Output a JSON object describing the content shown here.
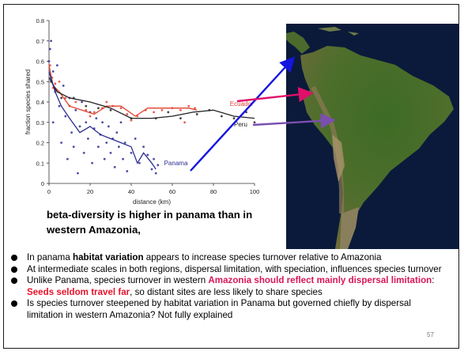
{
  "chart_data": {
    "type": "scatter",
    "xlabel": "distance (km)",
    "ylabel": "fraction species shared",
    "xlim": [
      0,
      100
    ],
    "ylim": [
      0,
      0.8
    ],
    "xticks": [
      "0",
      "20",
      "40",
      "60",
      "80",
      "100"
    ],
    "yticks": [
      "0",
      "0.1",
      "0.2",
      "0.3",
      "0.4",
      "0.5",
      "0.6",
      "0.7",
      "0.8"
    ],
    "grid": false,
    "series": [
      {
        "name": "Ecuador",
        "color": "#e2412f",
        "points": [
          [
            0.5,
            0.58
          ],
          [
            1.5,
            0.52
          ],
          [
            2,
            0.47
          ],
          [
            3,
            0.49
          ],
          [
            5,
            0.5
          ],
          [
            8,
            0.42
          ],
          [
            10,
            0.38
          ],
          [
            13,
            0.4
          ],
          [
            18,
            0.36
          ],
          [
            20,
            0.33
          ],
          [
            22,
            0.35
          ],
          [
            26,
            0.37
          ],
          [
            28,
            0.4
          ],
          [
            31,
            0.38
          ],
          [
            35,
            0.37
          ],
          [
            38,
            0.34
          ],
          [
            40,
            0.31
          ],
          [
            43,
            0.33
          ],
          [
            47,
            0.36
          ],
          [
            51,
            0.35
          ],
          [
            55,
            0.36
          ],
          [
            60,
            0.37
          ],
          [
            64,
            0.36
          ],
          [
            66,
            0.3
          ],
          [
            68,
            0.38
          ],
          [
            71,
            0.37
          ]
        ],
        "trend": [
          [
            0,
            0.58
          ],
          [
            2,
            0.48
          ],
          [
            5,
            0.45
          ],
          [
            10,
            0.38
          ],
          [
            16,
            0.36
          ],
          [
            22,
            0.34
          ],
          [
            28,
            0.38
          ],
          [
            35,
            0.38
          ],
          [
            42,
            0.33
          ],
          [
            48,
            0.37
          ],
          [
            55,
            0.37
          ],
          [
            62,
            0.37
          ],
          [
            68,
            0.37
          ],
          [
            72,
            0.36
          ]
        ]
      },
      {
        "name": "Peru",
        "color": "#222222",
        "points": [
          [
            1,
            0.5
          ],
          [
            3,
            0.46
          ],
          [
            6,
            0.42
          ],
          [
            12,
            0.42
          ],
          [
            18,
            0.38
          ],
          [
            24,
            0.37
          ],
          [
            30,
            0.36
          ],
          [
            40,
            0.32
          ],
          [
            52,
            0.32
          ],
          [
            58,
            0.35
          ],
          [
            64,
            0.32
          ],
          [
            72,
            0.34
          ],
          [
            78,
            0.36
          ],
          [
            84,
            0.33
          ],
          [
            90,
            0.32
          ],
          [
            96,
            0.35
          ],
          [
            100,
            0.3
          ]
        ],
        "trend": [
          [
            0,
            0.52
          ],
          [
            4,
            0.45
          ],
          [
            10,
            0.42
          ],
          [
            20,
            0.4
          ],
          [
            30,
            0.37
          ],
          [
            40,
            0.32
          ],
          [
            50,
            0.32
          ],
          [
            60,
            0.33
          ],
          [
            70,
            0.35
          ],
          [
            80,
            0.36
          ],
          [
            90,
            0.33
          ],
          [
            100,
            0.32
          ]
        ]
      },
      {
        "name": "Panama",
        "color": "#2b2d8f",
        "points": [
          [
            0,
            0.6
          ],
          [
            0.5,
            0.66
          ],
          [
            1,
            0.7
          ],
          [
            1,
            0.52
          ],
          [
            2,
            0.55
          ],
          [
            2,
            0.3
          ],
          [
            3,
            0.45
          ],
          [
            4,
            0.58
          ],
          [
            5,
            0.38
          ],
          [
            6,
            0.2
          ],
          [
            7,
            0.48
          ],
          [
            8,
            0.33
          ],
          [
            9,
            0.12
          ],
          [
            10,
            0.42
          ],
          [
            11,
            0.25
          ],
          [
            12,
            0.18
          ],
          [
            13,
            0.36
          ],
          [
            14,
            0.05
          ],
          [
            15,
            0.28
          ],
          [
            16,
            0.4
          ],
          [
            17,
            0.15
          ],
          [
            18,
            0.3
          ],
          [
            19,
            0.22
          ],
          [
            20,
            0.35
          ],
          [
            21,
            0.1
          ],
          [
            22,
            0.27
          ],
          [
            23,
            0.32
          ],
          [
            24,
            0.18
          ],
          [
            25,
            0.24
          ],
          [
            26,
            0.3
          ],
          [
            27,
            0.12
          ],
          [
            28,
            0.2
          ],
          [
            29,
            0.28
          ],
          [
            30,
            0.15
          ],
          [
            31,
            0.22
          ],
          [
            32,
            0.08
          ],
          [
            33,
            0.25
          ],
          [
            34,
            0.18
          ],
          [
            35,
            0.3
          ],
          [
            36,
            0.12
          ],
          [
            37,
            0.2
          ],
          [
            38,
            0.06
          ],
          [
            40,
            0.15
          ],
          [
            42,
            0.22
          ],
          [
            44,
            0.1
          ],
          [
            46,
            0.18
          ],
          [
            48,
            0.14
          ],
          [
            50,
            0.07
          ],
          [
            51,
            0.12
          ],
          [
            52,
            0.05
          ],
          [
            53,
            0.09
          ]
        ],
        "trend": [
          [
            0,
            0.55
          ],
          [
            3,
            0.45
          ],
          [
            6,
            0.38
          ],
          [
            10,
            0.32
          ],
          [
            15,
            0.25
          ],
          [
            20,
            0.28
          ],
          [
            25,
            0.24
          ],
          [
            30,
            0.22
          ],
          [
            35,
            0.2
          ],
          [
            40,
            0.18
          ],
          [
            43,
            0.1
          ],
          [
            46,
            0.15
          ],
          [
            50,
            0.1
          ],
          [
            52,
            0.07
          ]
        ]
      }
    ]
  },
  "caption": "beta-diversity is higher in panama than in western Amazonia,",
  "bullets": {
    "b1": {
      "t1": "In panama ",
      "t2": "habitat variation",
      "t3": " appears to increase species turnover relative to Amazonia"
    },
    "b2": {
      "t1": "At intermediate scales in both regions, dispersal limitation, with speciation, influences species turnover"
    },
    "b3": {
      "t1": "Unlike Panama, species turnover in western ",
      "t2": "Amazonia should reflect mainly dispersal limitation",
      "t3": ": ",
      "t4": "Seeds seldom travel far",
      "t5": ", so distant sites are less likely to share species"
    },
    "b4": {
      "t1": "Is species turnover steepened by habitat variation in Panama but governed chiefly by dispersal limitation in western Amazonia? Not fully explained"
    }
  },
  "page_number": "57",
  "colors": {
    "arrow_blue": "#1515e0",
    "arrow_pink": "#e0106a",
    "arrow_purple": "#7b4fb0",
    "ocean": "#0b1a3a",
    "land": "#3f6b2a"
  },
  "map_icon": "south-america-satellite-map"
}
